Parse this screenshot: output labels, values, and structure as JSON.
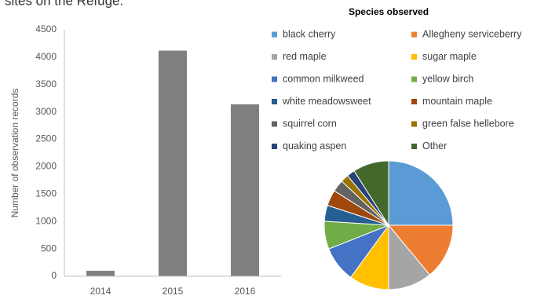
{
  "caption": "sites on the Refuge.",
  "chart_data": [
    {
      "type": "bar",
      "categories": [
        "2014",
        "2015",
        "2016"
      ],
      "values": [
        100,
        4120,
        3140
      ],
      "color": "#7f7f7f",
      "y_label": "Number of observation records",
      "ylim": [
        0,
        4500
      ],
      "yticks": [
        0,
        500,
        1000,
        1500,
        2000,
        2500,
        3000,
        3500,
        4000,
        4500
      ]
    },
    {
      "type": "pie",
      "title": "Species observed",
      "categories": [
        "black cherry",
        "Allegheny serviceberry",
        "red maple",
        "sugar maple",
        "common milkweed",
        "yellow birch",
        "white meadowsweet",
        "mountain maple",
        "squirrel corn",
        "green false hellebore",
        "quaking aspen",
        "Other"
      ],
      "values": [
        25,
        14,
        11,
        10,
        9,
        7,
        4,
        4,
        3,
        2,
        2,
        9
      ],
      "colors": [
        "#5b9bd5",
        "#ed7d31",
        "#a5a5a5",
        "#ffc000",
        "#4472c4",
        "#70ad47",
        "#255e91",
        "#9e480e",
        "#636363",
        "#997300",
        "#264478",
        "#43682b"
      ]
    }
  ]
}
